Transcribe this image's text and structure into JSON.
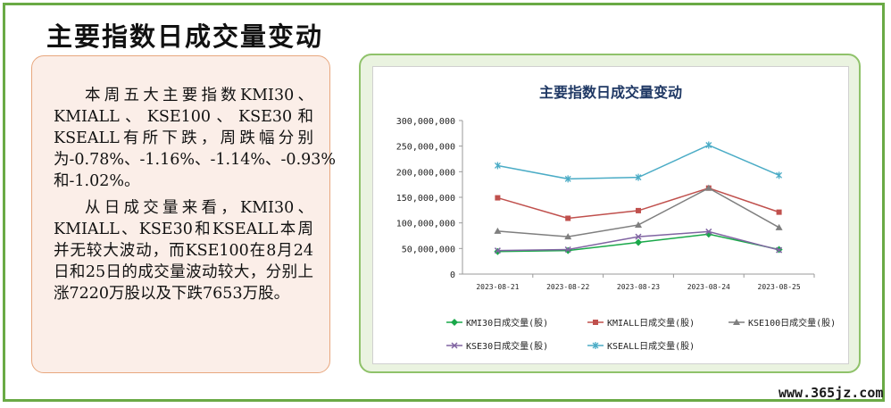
{
  "page": {
    "title": "主要指数日成交量变动",
    "paragraphs": [
      "本周五大主要指数KMI30、KMIALL 、 KSE100 、 KSE30 和KSEALL有所下跌，周跌幅分别为-0.78%、-1.16%、-1.14%、-0.93%和-1.02%。",
      "从日成交量来看，KMI30、KMIALL、KSE30和KSEALL本周并无较大波动，而KSE100在8月24日和25日的成交量波动较大，分别上涨7220万股以及下跌7653万股。"
    ],
    "watermark": "www.365jz.com"
  },
  "chart_data": {
    "type": "line",
    "title": "主要指数日成交量变动",
    "xlabel": "",
    "ylabel": "",
    "ylim": [
      0,
      300000000
    ],
    "yticks": [
      0,
      50000000,
      100000000,
      150000000,
      200000000,
      250000000,
      300000000
    ],
    "ytick_labels": [
      "0",
      "50,000,000",
      "100,000,000",
      "150,000,000",
      "200,000,000",
      "250,000,000",
      "300,000,000"
    ],
    "categories": [
      "2023-08-21",
      "2023-08-22",
      "2023-08-23",
      "2023-08-24",
      "2023-08-25"
    ],
    "grid": false,
    "legend_position": "bottom",
    "series": [
      {
        "name": "KMI30日成交量(股)",
        "color": "#1aa84a",
        "marker": "diamond",
        "values": [
          44000000,
          46000000,
          62000000,
          78000000,
          48000000
        ]
      },
      {
        "name": "KMIALL日成交量(股)",
        "color": "#c0504d",
        "marker": "square",
        "values": [
          149000000,
          109000000,
          124000000,
          168000000,
          121000000
        ]
      },
      {
        "name": "KSE100日成交量(股)",
        "color": "#7f7f7f",
        "marker": "triangle",
        "values": [
          84000000,
          73000000,
          96000000,
          168000000,
          91000000
        ]
      },
      {
        "name": "KSE30日成交量(股)",
        "color": "#8064a2",
        "marker": "cross",
        "values": [
          46000000,
          48000000,
          73000000,
          83000000,
          47000000
        ]
      },
      {
        "name": "KSEALL日成交量(股)",
        "color": "#4bacc6",
        "marker": "star",
        "values": [
          212000000,
          186000000,
          189000000,
          252000000,
          193000000
        ]
      }
    ]
  }
}
